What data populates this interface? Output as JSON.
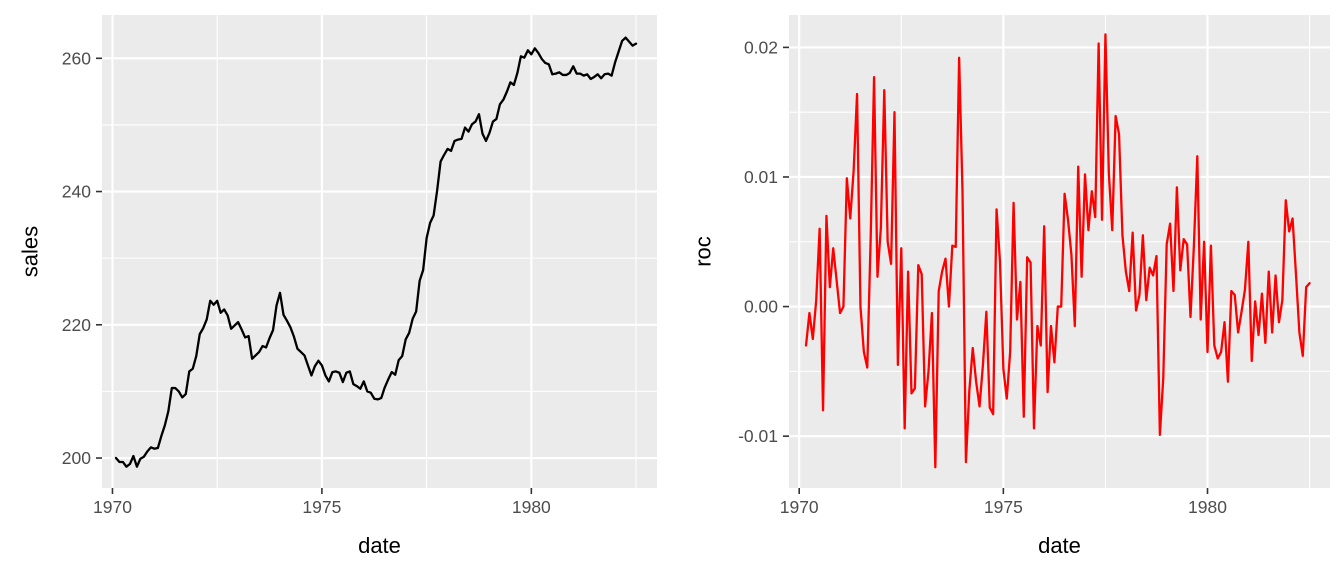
{
  "chart_data": [
    {
      "type": "line",
      "x_label": "date",
      "y_label": "sales",
      "x_range": [
        "1969-10-01",
        "1983-01-01"
      ],
      "y_range": [
        195.5,
        266.5
      ],
      "x_ticks": [
        1970,
        1975,
        1980
      ],
      "y_ticks": [
        200,
        220,
        240,
        260
      ],
      "grid": true,
      "series": [
        {
          "color": "#000000",
          "x": [
            "1970-02",
            "1970-03",
            "1970-04",
            "1970-05",
            "1970-06",
            "1970-07",
            "1970-08",
            "1970-09",
            "1970-10",
            "1970-11",
            "1970-12",
            "1971-01",
            "1971-02",
            "1971-03",
            "1971-04",
            "1971-05",
            "1971-06",
            "1971-07",
            "1971-08",
            "1971-09",
            "1971-10",
            "1971-11",
            "1971-12",
            "1972-01",
            "1972-02",
            "1972-03",
            "1972-04",
            "1972-05",
            "1972-06",
            "1972-07",
            "1972-08",
            "1972-09",
            "1972-10",
            "1972-11",
            "1972-12",
            "1973-01",
            "1973-02",
            "1973-03",
            "1973-04",
            "1973-05",
            "1973-06",
            "1973-07",
            "1973-08",
            "1973-09",
            "1973-10",
            "1973-11",
            "1973-12",
            "1974-01",
            "1974-02",
            "1974-03",
            "1974-04",
            "1974-05",
            "1974-06",
            "1974-07",
            "1974-08",
            "1974-09",
            "1974-10",
            "1974-11",
            "1974-12",
            "1975-01",
            "1975-02",
            "1975-03",
            "1975-04",
            "1975-05",
            "1975-06",
            "1975-07",
            "1975-08",
            "1975-09",
            "1975-10",
            "1975-11",
            "1975-12",
            "1976-01",
            "1976-02",
            "1976-03",
            "1976-04",
            "1976-05",
            "1976-06",
            "1976-07",
            "1976-08",
            "1976-09",
            "1976-10",
            "1976-11",
            "1976-12",
            "1977-01",
            "1977-02",
            "1977-03",
            "1977-04",
            "1977-05",
            "1977-06",
            "1977-07",
            "1977-08",
            "1977-09",
            "1977-10",
            "1977-11",
            "1977-12",
            "1978-01",
            "1978-02",
            "1978-03",
            "1978-04",
            "1978-05",
            "1978-06",
            "1978-07",
            "1978-08",
            "1978-09",
            "1978-10",
            "1978-11",
            "1978-12",
            "1979-01",
            "1979-02",
            "1979-03",
            "1979-04",
            "1979-05",
            "1979-06",
            "1979-07",
            "1979-08",
            "1979-09",
            "1979-10",
            "1979-11",
            "1979-12",
            "1980-01",
            "1980-02",
            "1980-03",
            "1980-04",
            "1980-05",
            "1980-06",
            "1980-07",
            "1980-08",
            "1980-09",
            "1980-10",
            "1980-11",
            "1980-12",
            "1981-01",
            "1981-02",
            "1981-03",
            "1981-04",
            "1981-05",
            "1981-06",
            "1981-07",
            "1981-08",
            "1981-09",
            "1981-10",
            "1981-11",
            "1981-12",
            "1982-01",
            "1982-02",
            "1982-03",
            "1982-04",
            "1982-05",
            "1982-06",
            "1982-07"
          ],
          "y": [
            200.0,
            199.4,
            199.4,
            198.7,
            199.1,
            200.3,
            198.7,
            199.9,
            200.2,
            201.0,
            201.6,
            201.4,
            201.5,
            203.3,
            204.9,
            207.0,
            210.5,
            210.5,
            210.0,
            209.1,
            209.6,
            213.0,
            213.4,
            215.3,
            218.6,
            219.5,
            220.8,
            223.6,
            223.0,
            223.6,
            221.8,
            222.3,
            221.4,
            219.4,
            219.9,
            220.4,
            219.3,
            218.1,
            218.3,
            214.9,
            215.4,
            215.9,
            216.8,
            216.6,
            218.0,
            219.2,
            222.9,
            224.8,
            221.5,
            220.6,
            219.6,
            218.2,
            216.4,
            215.9,
            215.4,
            213.9,
            212.4,
            213.8,
            214.6,
            213.9,
            212.4,
            211.5,
            212.9,
            213.0,
            212.8,
            211.4,
            212.8,
            213.0,
            211.1,
            210.8,
            210.4,
            211.5,
            210.0,
            209.8,
            208.9,
            208.8,
            209.0,
            210.6,
            211.8,
            212.9,
            212.5,
            214.7,
            215.3,
            217.8,
            218.8,
            220.9,
            222.0,
            226.6,
            228.2,
            233.0,
            235.3,
            236.4,
            240.1,
            244.5,
            245.5,
            246.4,
            246.1,
            247.6,
            247.8,
            247.9,
            249.6,
            249.0,
            250.1,
            250.5,
            251.6,
            248.7,
            247.6,
            248.8,
            250.5,
            250.9,
            253.1,
            253.8,
            255.0,
            256.4,
            256.0,
            257.8,
            260.3,
            260.1,
            261.2,
            260.6,
            261.5,
            260.8,
            259.9,
            259.3,
            259.1,
            257.6,
            257.7,
            257.9,
            257.5,
            257.5,
            257.8,
            258.8,
            257.7,
            257.7,
            257.4,
            257.6,
            256.9,
            257.2,
            257.6,
            257.0,
            257.6,
            257.7,
            257.4,
            259.4,
            261.0,
            262.6,
            263.1,
            262.5,
            261.9,
            262.2
          ]
        }
      ]
    },
    {
      "type": "line",
      "x_label": "date",
      "y_label": "roc",
      "x_range": [
        "1969-10-01",
        "1983-01-01"
      ],
      "y_range": [
        -0.014,
        0.0225
      ],
      "x_ticks": [
        1970,
        1975,
        1980
      ],
      "y_ticks": [
        -0.01,
        0.0,
        0.01,
        0.02
      ],
      "y_tick_labels": [
        "-0.01",
        "0.00",
        "0.01",
        "0.02"
      ],
      "grid": true,
      "series": [
        {
          "color": "#FF0000",
          "x": [
            "1970-03",
            "1970-04",
            "1970-05",
            "1970-06",
            "1970-07",
            "1970-08",
            "1970-09",
            "1970-10",
            "1970-11",
            "1970-12",
            "1971-01",
            "1971-02",
            "1971-03",
            "1971-04",
            "1971-05",
            "1971-06",
            "1971-07",
            "1971-08",
            "1971-09",
            "1971-10",
            "1971-11",
            "1971-12",
            "1972-01",
            "1972-02",
            "1972-03",
            "1972-04",
            "1972-05",
            "1972-06",
            "1972-07",
            "1972-08",
            "1972-09",
            "1972-10",
            "1972-11",
            "1972-12",
            "1973-01",
            "1973-02",
            "1973-03",
            "1973-04",
            "1973-05",
            "1973-06",
            "1973-07",
            "1973-08",
            "1973-09",
            "1973-10",
            "1973-11",
            "1973-12",
            "1974-01",
            "1974-02",
            "1974-03",
            "1974-04",
            "1974-05",
            "1974-06",
            "1974-07",
            "1974-08",
            "1974-09",
            "1974-10",
            "1974-11",
            "1974-12",
            "1975-01",
            "1975-02",
            "1975-03",
            "1975-04",
            "1975-05",
            "1975-06",
            "1975-07",
            "1975-08",
            "1975-09",
            "1975-10",
            "1975-11",
            "1975-12",
            "1976-01",
            "1976-02",
            "1976-03",
            "1976-04",
            "1976-05",
            "1976-06",
            "1976-07",
            "1976-08",
            "1976-09",
            "1976-10",
            "1976-11",
            "1976-12",
            "1977-01",
            "1977-02",
            "1977-03",
            "1977-04",
            "1977-05",
            "1977-06",
            "1977-07",
            "1977-08",
            "1977-09",
            "1977-10",
            "1977-11",
            "1977-12",
            "1978-01",
            "1978-02",
            "1978-03",
            "1978-04",
            "1978-05",
            "1978-06",
            "1978-07",
            "1978-08",
            "1978-09",
            "1978-10",
            "1978-11",
            "1978-12",
            "1979-01",
            "1979-02",
            "1979-03",
            "1979-04",
            "1979-05",
            "1979-06",
            "1979-07",
            "1979-08",
            "1979-09",
            "1979-10",
            "1979-11",
            "1979-12",
            "1980-01",
            "1980-02",
            "1980-03",
            "1980-04",
            "1980-05",
            "1980-06",
            "1980-07",
            "1980-08",
            "1980-09",
            "1980-10",
            "1980-11",
            "1980-12",
            "1981-01",
            "1981-02",
            "1981-03",
            "1981-04",
            "1981-05",
            "1981-06",
            "1981-07",
            "1981-08",
            "1981-09",
            "1981-10",
            "1981-11",
            "1981-12",
            "1982-01",
            "1982-02",
            "1982-03",
            "1982-04",
            "1982-05",
            "1982-06",
            "1982-07"
          ],
          "y": [
            -0.003,
            -0.0005,
            -0.0025,
            0.0005,
            0.006,
            -0.008,
            0.007,
            0.0015,
            0.0045,
            0.002,
            -0.0005,
            0.0,
            0.0099,
            0.0068,
            0.0105,
            0.0164,
            0.0,
            -0.0035,
            -0.0047,
            0.0052,
            0.0177,
            0.0023,
            0.0061,
            0.0167,
            0.005,
            0.0033,
            0.015,
            -0.0045,
            0.0045,
            -0.0094,
            0.0027,
            -0.0067,
            -0.0063,
            0.0032,
            0.0025,
            -0.0077,
            -0.005,
            -0.0005,
            -0.0124,
            0.0012,
            0.0027,
            0.0037,
            0.0,
            0.0047,
            0.0046,
            0.0192,
            0.0088,
            -0.012,
            -0.0065,
            -0.0032,
            -0.0058,
            -0.0077,
            -0.0045,
            -0.0004,
            -0.0078,
            -0.0083,
            0.0075,
            0.0035,
            -0.0048,
            -0.0071,
            -0.0035,
            0.008,
            -0.001,
            0.0019,
            -0.0085,
            0.0038,
            0.0034,
            -0.0094,
            -0.0015,
            -0.003,
            0.0062,
            -0.0066,
            -0.0015,
            -0.0043,
            0.0,
            0.0,
            0.0087,
            0.0067,
            0.004,
            -0.0015,
            0.0108,
            0.0023,
            0.0102,
            0.0059,
            0.0089,
            0.0069,
            0.0203,
            0.0067,
            0.021,
            0.0103,
            0.0059,
            0.0147,
            0.0133,
            0.0055,
            0.0027,
            0.0012,
            0.0057,
            -0.0003,
            0.0009,
            0.0055,
            0.0005,
            0.003,
            0.0024,
            0.0039,
            -0.0099,
            -0.0055,
            0.0048,
            0.0064,
            0.0012,
            0.0092,
            0.0028,
            0.0052,
            0.0048,
            -0.0008,
            0.0047,
            0.0116,
            -0.001,
            0.005,
            -0.0035,
            0.0047,
            -0.003,
            -0.004,
            -0.0035,
            -0.0012,
            -0.0058,
            0.0012,
            0.0009,
            -0.002,
            -0.0004,
            0.0013,
            0.005,
            -0.0042,
            0.0004,
            -0.0022,
            0.001,
            -0.0028,
            0.0027,
            -0.002,
            0.0024,
            -0.0012,
            0.0005,
            0.0082,
            0.0058,
            0.0068,
            0.0025,
            -0.002,
            -0.0038,
            0.0015,
            0.0018
          ]
        }
      ]
    }
  ]
}
